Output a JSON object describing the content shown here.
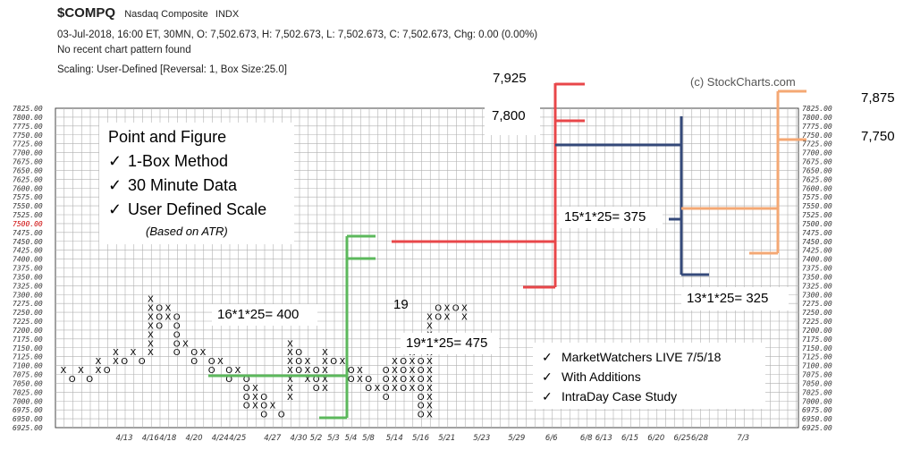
{
  "header": {
    "symbol": "$COMPQ",
    "name": "Nasdaq Composite",
    "exchange": "INDX",
    "ohlc": "03-Jul-2018, 16:00 ET, 30MN, O: 7,502.673, H: 7,502.673, L: 7,502.673, C: 7,502.673, Chg: 0.00 (0.00%)",
    "pattern": "No recent chart pattern found",
    "scaling": "Scaling: User-Defined [Reversal: 1, Box Size:25.0]",
    "copyright": "(c) StockCharts.com"
  },
  "annotations": {
    "title": "Point and Figure",
    "checks": [
      "1-Box Method",
      "30 Minute Data",
      "User Defined Scale"
    ],
    "check_mark": "✓",
    "note": "(Based on ATR)",
    "count_400": "16*1*25= 400",
    "label_19": "19",
    "count_475": "19*1*25= 475",
    "count_375": "15*1*25= 375",
    "count_325": "13*1*25= 325",
    "target_7925": "7,925",
    "target_7800": "7,800",
    "target_7875": "7,875",
    "target_7750": "7,750",
    "notes": [
      "MarketWatchers LIVE 7/5/18",
      "With Additions",
      "IntraDay Case Study"
    ]
  },
  "colors": {
    "x_marks": "#000000",
    "o_marks": "#000000",
    "last_price": "#cc0000",
    "grid": "#b0b0b0",
    "red_line": "#e8474a",
    "green_line": "#5cb85c",
    "navy_line": "#34497a",
    "orange_line": "#f4a874"
  },
  "chart_data": {
    "type": "point-and-figure",
    "box_size": 25,
    "reversal": 1,
    "last_price": 7500,
    "last_price_label": "7500.00",
    "price_labels": [
      "7825.00",
      "7800.00",
      "7775.00",
      "7750.00",
      "7725.00",
      "7700.00",
      "7675.00",
      "7650.00",
      "7625.00",
      "7600.00",
      "7575.00",
      "7550.00",
      "7525.00",
      "7500.00",
      "7475.00",
      "7450.00",
      "7425.00",
      "7400.00",
      "7375.00",
      "7350.00",
      "7325.00",
      "7300.00",
      "7275.00",
      "7250.00",
      "7225.00",
      "7200.00",
      "7175.00",
      "7150.00",
      "7125.00",
      "7100.00",
      "7075.00",
      "7050.00",
      "7025.00",
      "7000.00",
      "6975.00",
      "6950.00",
      "6925.00"
    ],
    "date_labels": [
      {
        "col": 4,
        "text": "4/13"
      },
      {
        "col": 7,
        "text": "4/16"
      },
      {
        "col": 9,
        "text": "4/18"
      },
      {
        "col": 12,
        "text": "4/20"
      },
      {
        "col": 15,
        "text": "4/24"
      },
      {
        "col": 17,
        "text": "4/25"
      },
      {
        "col": 21,
        "text": "4/27"
      },
      {
        "col": 24,
        "text": "4/30"
      },
      {
        "col": 26,
        "text": "5/2"
      },
      {
        "col": 28,
        "text": "5/3"
      },
      {
        "col": 30,
        "text": "5/4"
      },
      {
        "col": 32,
        "text": "5/8"
      },
      {
        "col": 35,
        "text": "5/14"
      },
      {
        "col": 38,
        "text": "5/16"
      },
      {
        "col": 41,
        "text": "5/21"
      },
      {
        "col": 45,
        "text": "5/23"
      },
      {
        "col": 49,
        "text": "5/29"
      },
      {
        "col": 53,
        "text": "6/6"
      },
      {
        "col": 57,
        "text": "6/8"
      },
      {
        "col": 59,
        "text": "6/13"
      },
      {
        "col": 62,
        "text": "6/15"
      },
      {
        "col": 65,
        "text": "6/20"
      },
      {
        "col": 68,
        "text": "6/25"
      },
      {
        "col": 70,
        "text": "6/28"
      },
      {
        "col": 75,
        "text": "7/3"
      }
    ],
    "columns": [
      {
        "t": "X",
        "lo": 7100,
        "hi": 7100
      },
      {
        "t": "O",
        "lo": 7075,
        "hi": 7075
      },
      {
        "t": "X",
        "lo": 7100,
        "hi": 7100
      },
      {
        "t": "O",
        "lo": 7075,
        "hi": 7075
      },
      {
        "t": "X",
        "lo": 7100,
        "hi": 7125
      },
      {
        "t": "O",
        "lo": 7100,
        "hi": 7100
      },
      {
        "t": "X",
        "lo": 7125,
        "hi": 7150
      },
      {
        "t": "O",
        "lo": 7125,
        "hi": 7125
      },
      {
        "t": "X",
        "lo": 7150,
        "hi": 7150
      },
      {
        "t": "O",
        "lo": 7125,
        "hi": 7125
      },
      {
        "t": "X",
        "lo": 7150,
        "hi": 7300
      },
      {
        "t": "O",
        "lo": 7225,
        "hi": 7275
      },
      {
        "t": "X",
        "lo": 7250,
        "hi": 7275
      },
      {
        "t": "O",
        "lo": 7150,
        "hi": 7250
      },
      {
        "t": "X",
        "lo": 7175,
        "hi": 7175
      },
      {
        "t": "O",
        "lo": 7125,
        "hi": 7150
      },
      {
        "t": "X",
        "lo": 7150,
        "hi": 7150
      },
      {
        "t": "O",
        "lo": 7100,
        "hi": 7125
      },
      {
        "t": "X",
        "lo": 7125,
        "hi": 7125
      },
      {
        "t": "O",
        "lo": 7075,
        "hi": 7100
      },
      {
        "t": "X",
        "lo": 7100,
        "hi": 7100
      },
      {
        "t": "O",
        "lo": 7000,
        "hi": 7075
      },
      {
        "t": "X",
        "lo": 7000,
        "hi": 7050
      },
      {
        "t": "O",
        "lo": 6975,
        "hi": 7025
      },
      {
        "t": "X",
        "lo": 7000,
        "hi": 7000
      },
      {
        "t": "O",
        "lo": 6975,
        "hi": 6975
      },
      {
        "t": "X",
        "lo": 7025,
        "hi": 7175
      },
      {
        "t": "O",
        "lo": 7100,
        "hi": 7150
      },
      {
        "t": "X",
        "lo": 7075,
        "hi": 7125
      },
      {
        "t": "O",
        "lo": 7050,
        "hi": 7100
      },
      {
        "t": "X",
        "lo": 7050,
        "hi": 7150
      },
      {
        "t": "O",
        "lo": 7125,
        "hi": 7125
      },
      {
        "t": "X",
        "lo": 7125,
        "hi": 7125
      },
      {
        "t": "O",
        "lo": 7075,
        "hi": 7100
      },
      {
        "t": "X",
        "lo": 7075,
        "hi": 7100
      },
      {
        "t": "O",
        "lo": 7050,
        "hi": 7075
      },
      {
        "t": "X",
        "lo": 7050,
        "hi": 7050
      },
      {
        "t": "O",
        "lo": 7025,
        "hi": 7100
      },
      {
        "t": "X",
        "lo": 7050,
        "hi": 7125
      },
      {
        "t": "O",
        "lo": 7050,
        "hi": 7125
      },
      {
        "t": "X",
        "lo": 7050,
        "hi": 7150
      },
      {
        "t": "O",
        "lo": 6975,
        "hi": 7125
      },
      {
        "t": "X",
        "lo": 6975,
        "hi": 7250
      },
      {
        "t": "O",
        "lo": 7250,
        "hi": 7275
      },
      {
        "t": "X",
        "lo": 7250,
        "hi": 7275
      },
      {
        "t": "O",
        "lo": 7275,
        "hi": 7275
      },
      {
        "t": "X",
        "lo": 7250,
        "hi": 7275
      }
    ]
  }
}
